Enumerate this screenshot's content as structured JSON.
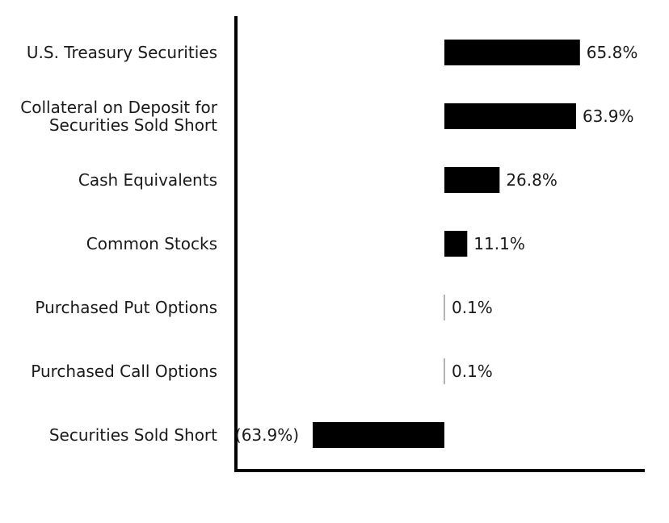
{
  "chart_data": {
    "type": "bar",
    "orientation": "horizontal",
    "categories": [
      "U.S. Treasury Securities",
      "Collateral on Deposit for Securities Sold Short",
      "Cash Equivalents",
      "Common Stocks",
      "Purchased Put Options",
      "Purchased Call Options",
      "Securities Sold Short"
    ],
    "category_lines": [
      [
        "U.S. Treasury Securities"
      ],
      [
        "Collateral on Deposit for",
        "Securities Sold Short"
      ],
      [
        "Cash Equivalents"
      ],
      [
        "Common Stocks"
      ],
      [
        "Purchased Put Options"
      ],
      [
        "Purchased Call Options"
      ],
      [
        "Securities Sold Short"
      ]
    ],
    "values": [
      65.8,
      63.9,
      26.8,
      11.1,
      0.1,
      0.1,
      -63.9
    ],
    "data_labels": [
      "65.8%",
      "63.9%",
      "26.8%",
      "11.1%",
      "0.1%",
      "0.1%",
      "(63.9%)"
    ],
    "unit": "%",
    "title": "",
    "xlabel": "",
    "ylabel": "",
    "bar_color": "#000000",
    "axis_color": "#000000",
    "grid": false,
    "legend": "none"
  }
}
